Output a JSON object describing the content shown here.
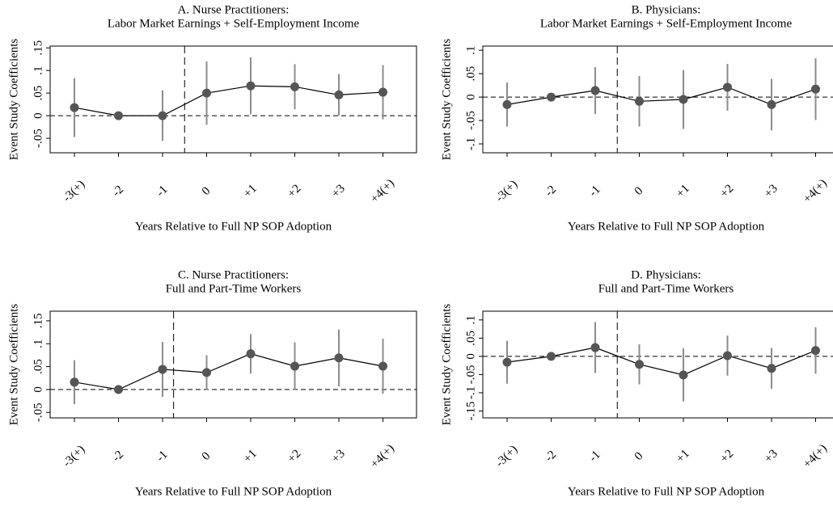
{
  "chart_data": [
    {
      "type": "event-study",
      "title": [
        "A. Nurse Practitioners:",
        "Labor Market Earnings + Self-Employment Income"
      ],
      "ylabel": "Event Study Coefficients",
      "xlabel": "Years Relative to Full NP SOP Adoption",
      "categories": [
        "-3(+)",
        "-2",
        "-1",
        "0",
        "+1",
        "+2",
        "+3",
        "+4(+)"
      ],
      "values": [
        0.018,
        0,
        0,
        0.05,
        0.066,
        0.064,
        0.046,
        0.052
      ],
      "errors": [
        0.065,
        0,
        0.056,
        0.07,
        0.063,
        0.05,
        0.046,
        0.06
      ],
      "color": "#555555",
      "error_color": "#8c8c8c",
      "ylim": [
        -0.082,
        0.154
      ],
      "yticks": [
        {
          "value": -0.05,
          "label": "-.05"
        },
        0,
        {
          "value": 0.05,
          "label": ".05"
        },
        {
          "value": 0.1,
          "label": ".1"
        },
        {
          "value": 0.15,
          "label": ".15"
        }
      ]
    },
    {
      "type": "event-study",
      "title": [
        "B. Physicians:",
        "Labor Market Earnings + Self-Employment Income"
      ],
      "ylabel": "Event Study Coefficients",
      "xlabel": "Years Relative to Full NP SOP Adoption",
      "categories": [
        "-3(+)",
        "-2",
        "-1",
        "0",
        "+1",
        "+2",
        "+3",
        "+4(+)"
      ],
      "values": [
        -0.016,
        0,
        0.014,
        -0.009,
        -0.005,
        0.021,
        -0.016,
        0.017
      ],
      "errors": [
        0.047,
        0,
        0.05,
        0.054,
        0.063,
        0.05,
        0.055,
        0.066
      ],
      "color": "#555555",
      "error_color": "#8c8c8c",
      "ylim": [
        -0.119,
        0.109
      ],
      "yticks": [
        {
          "value": -0.1,
          "label": "-.1"
        },
        {
          "value": -0.05,
          "label": "-.05"
        },
        0,
        {
          "value": 0.05,
          "label": ".05"
        },
        {
          "value": 0.1,
          "label": ".1"
        }
      ]
    },
    {
      "type": "event-study",
      "title": [
        "C. Nurse Practitioners:",
        "Full and Part-Time Workers"
      ],
      "ylabel": "Event Study Coefficients",
      "xlabel": "Years Relative to Full NP SOP Adoption",
      "categories": [
        "-3(+)",
        "-2",
        "-1",
        "0",
        "+1",
        "+2",
        "+3",
        "+4(+)"
      ],
      "values": [
        0.016,
        0,
        0.044,
        0.037,
        0.078,
        0.051,
        0.069,
        0.051
      ],
      "errors": [
        0.048,
        0,
        0.06,
        0.038,
        0.043,
        0.052,
        0.062,
        0.06
      ],
      "color": "#555555",
      "error_color": "#8c8c8c",
      "ylim": [
        -0.062,
        0.171
      ],
      "yticks": [
        {
          "value": -0.05,
          "label": "-.05"
        },
        0,
        {
          "value": 0.05,
          "label": ".05"
        },
        {
          "value": 0.1,
          "label": ".1"
        },
        {
          "value": 0.15,
          "label": ".15"
        }
      ]
    },
    {
      "type": "event-study",
      "title": [
        "D. Physicians:",
        "Full and Part-Time Workers"
      ],
      "ylabel": "Event Study Coefficients",
      "xlabel": "Years Relative to Full NP SOP Adoption",
      "categories": [
        "-3(+)",
        "-2",
        "-1",
        "0",
        "+1",
        "+2",
        "+3",
        "+4(+)"
      ],
      "values": [
        -0.016,
        0,
        0.024,
        -0.022,
        -0.051,
        0.002,
        -0.033,
        0.016
      ],
      "errors": [
        0.059,
        0,
        0.07,
        0.055,
        0.073,
        0.055,
        0.056,
        0.064
      ],
      "color": "#555555",
      "error_color": "#8c8c8c",
      "ylim": [
        -0.169,
        0.124
      ],
      "yticks": [
        {
          "value": -0.15,
          "label": "-.15"
        },
        {
          "value": -0.1,
          "label": "-.1"
        },
        {
          "value": -0.05,
          "label": "-.05"
        },
        0,
        {
          "value": 0.05,
          "label": ".05"
        },
        {
          "value": 0.1,
          "label": ".1"
        }
      ]
    }
  ]
}
